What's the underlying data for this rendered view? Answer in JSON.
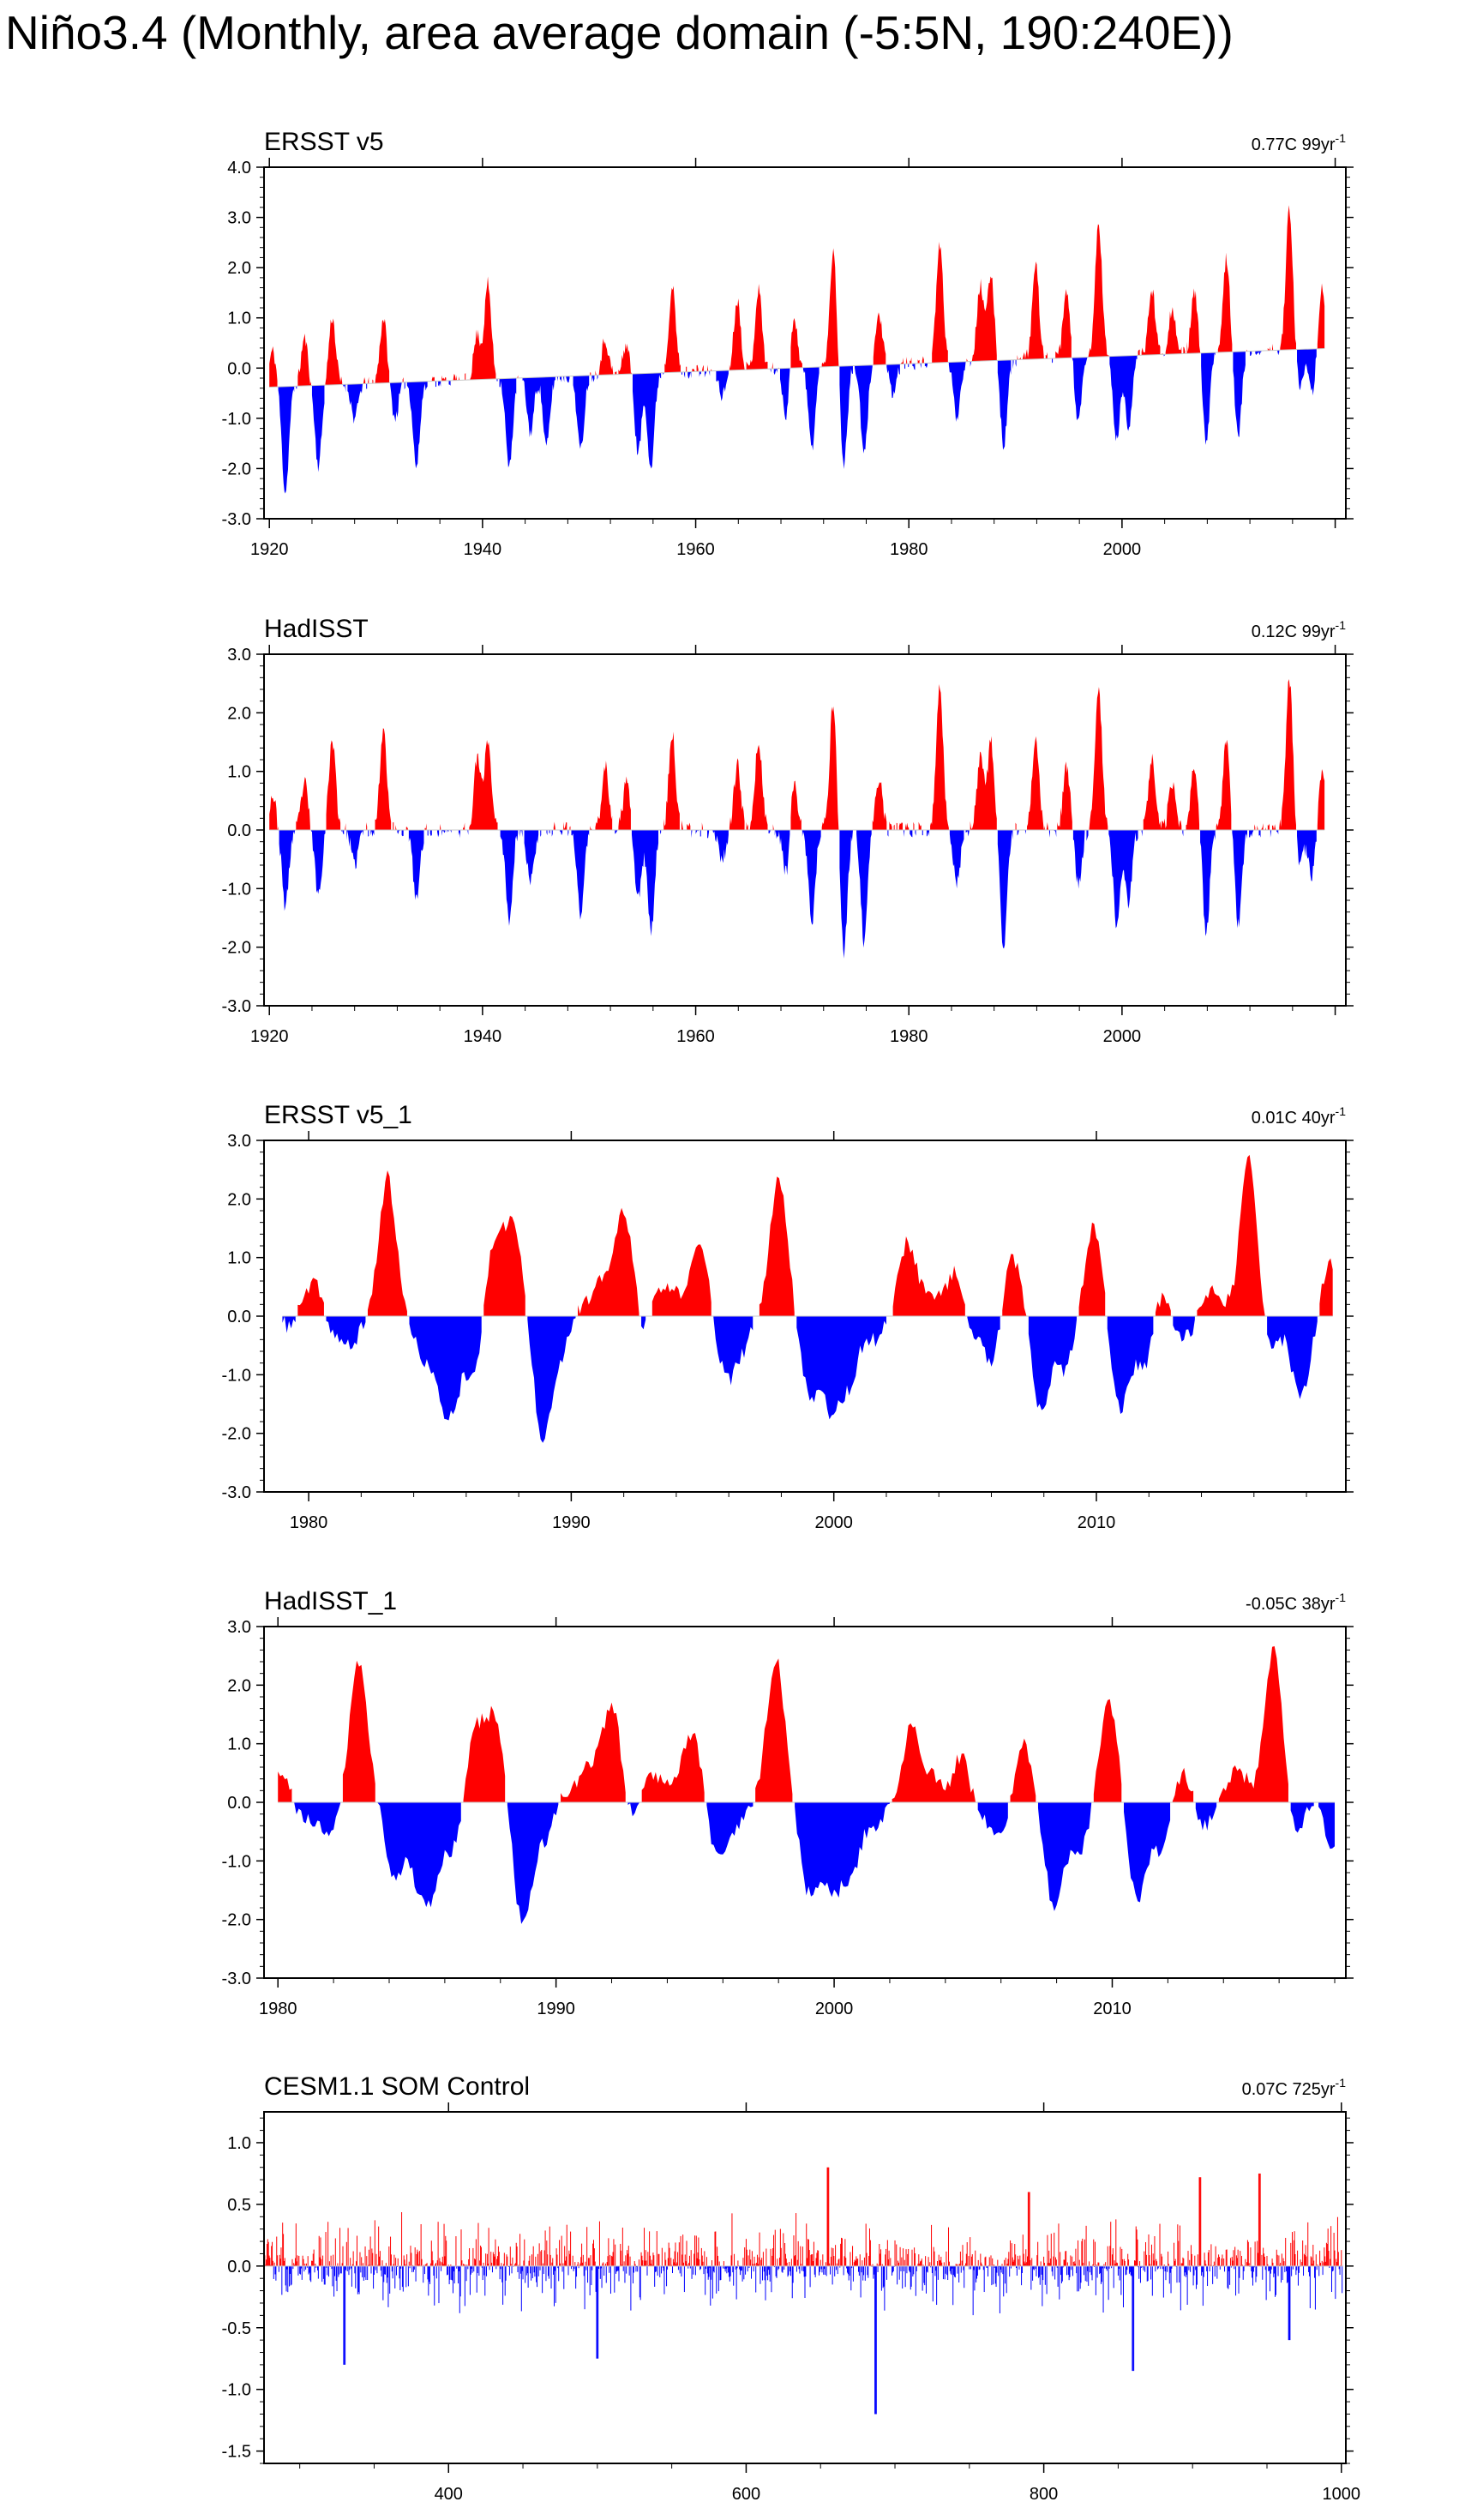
{
  "title": "Niño3.4 (Monthly, area average domain (-5:5N, 190:240E))",
  "colors": {
    "positive": "#ff0000",
    "negative": "#0000ff",
    "axis": "#000000",
    "zero_line": "#c8c8c8"
  },
  "chart_data": [
    {
      "type": "area",
      "panel_label": "ERSST v5",
      "stats": "0.77C 99yr",
      "stats_sup": "-1",
      "x_range": [
        1920,
        2019
      ],
      "xlim": [
        1919.5,
        2021
      ],
      "ylim": [
        -3.0,
        4.0
      ],
      "y_ticks": [
        "4.0",
        "3.0",
        "2.0",
        "1.0",
        "0.0",
        "-1.0",
        "-2.0",
        "-3.0"
      ],
      "x_ticks": [
        "1920",
        "1940",
        "1960",
        "1980",
        "2000"
      ],
      "baseline": "linear trend",
      "trend": [
        -0.38,
        0.39
      ],
      "seed": 11,
      "events": [
        [
          1920.3,
          0.72
        ],
        [
          1921.5,
          -2.1
        ],
        [
          1923.3,
          0.95
        ],
        [
          1924.6,
          -1.6
        ],
        [
          1925.9,
          1.35
        ],
        [
          1928.0,
          -0.7
        ],
        [
          1930.7,
          1.3
        ],
        [
          1931.8,
          -0.7
        ],
        [
          1933.8,
          -1.7
        ],
        [
          1939.5,
          0.9
        ],
        [
          1940.5,
          1.9
        ],
        [
          1942.5,
          -1.8
        ],
        [
          1944.5,
          -1.1
        ],
        [
          1946.0,
          -1.4
        ],
        [
          1949.2,
          -1.5
        ],
        [
          1951.5,
          0.7
        ],
        [
          1953.5,
          0.6
        ],
        [
          1954.6,
          -1.6
        ],
        [
          1955.8,
          -1.9
        ],
        [
          1957.8,
          1.7
        ],
        [
          1962.5,
          -0.5
        ],
        [
          1963.9,
          1.4
        ],
        [
          1965.9,
          1.6
        ],
        [
          1968.5,
          -1.0
        ],
        [
          1969.2,
          1.1
        ],
        [
          1970.9,
          -1.6
        ],
        [
          1972.9,
          2.3
        ],
        [
          1973.9,
          -1.95
        ],
        [
          1975.8,
          -1.8
        ],
        [
          1977.2,
          1.0
        ],
        [
          1978.5,
          -0.6
        ],
        [
          1982.9,
          2.35
        ],
        [
          1984.5,
          -1.1
        ],
        [
          1986.7,
          1.5
        ],
        [
          1987.7,
          1.7
        ],
        [
          1988.9,
          -1.7
        ],
        [
          1991.9,
          1.85
        ],
        [
          1994.8,
          1.3
        ],
        [
          1995.9,
          -1.3
        ],
        [
          1997.8,
          2.65
        ],
        [
          1999.5,
          -1.7
        ],
        [
          2000.6,
          -1.45
        ],
        [
          2002.8,
          1.3
        ],
        [
          2004.7,
          0.9
        ],
        [
          2006.8,
          1.2
        ],
        [
          2007.9,
          -1.8
        ],
        [
          2009.8,
          1.9
        ],
        [
          2010.9,
          -1.7
        ],
        [
          2015.7,
          2.85
        ],
        [
          2016.7,
          -0.8
        ],
        [
          2017.8,
          -0.9
        ],
        [
          2018.8,
          1.2
        ]
      ]
    },
    {
      "type": "area",
      "panel_label": "HadISST",
      "stats": "0.12C 99yr",
      "stats_sup": "-1",
      "x_range": [
        1920,
        2019
      ],
      "xlim": [
        1919.5,
        2021
      ],
      "ylim": [
        -3.0,
        3.0
      ],
      "y_ticks": [
        "3.0",
        "2.0",
        "1.0",
        "0.0",
        "-1.0",
        "-2.0",
        "-3.0"
      ],
      "x_ticks": [
        "1920",
        "1940",
        "1960",
        "1980",
        "2000"
      ],
      "baseline": "zero",
      "trend": [
        0,
        0
      ],
      "seed": 23,
      "events": [
        [
          1920.3,
          0.6
        ],
        [
          1921.5,
          -1.3
        ],
        [
          1923.3,
          0.8
        ],
        [
          1924.6,
          -1.1
        ],
        [
          1925.9,
          1.55
        ],
        [
          1928.0,
          -0.6
        ],
        [
          1930.7,
          1.75
        ],
        [
          1933.8,
          -1.2
        ],
        [
          1939.5,
          1.2
        ],
        [
          1940.5,
          1.55
        ],
        [
          1942.5,
          -1.5
        ],
        [
          1944.5,
          -0.9
        ],
        [
          1949.2,
          -1.45
        ],
        [
          1951.5,
          1.1
        ],
        [
          1953.5,
          0.8
        ],
        [
          1954.6,
          -1.2
        ],
        [
          1955.8,
          -1.75
        ],
        [
          1957.8,
          1.65
        ],
        [
          1962.5,
          -0.5
        ],
        [
          1963.9,
          1.1
        ],
        [
          1965.9,
          1.55
        ],
        [
          1968.5,
          -0.8
        ],
        [
          1969.2,
          0.9
        ],
        [
          1970.9,
          -1.6
        ],
        [
          1972.9,
          2.2
        ],
        [
          1973.9,
          -2.1
        ],
        [
          1975.8,
          -1.9
        ],
        [
          1977.2,
          0.9
        ],
        [
          1982.9,
          2.45
        ],
        [
          1984.5,
          -0.9
        ],
        [
          1986.7,
          1.2
        ],
        [
          1987.7,
          1.5
        ],
        [
          1988.9,
          -2.05
        ],
        [
          1991.9,
          1.6
        ],
        [
          1994.8,
          1.1
        ],
        [
          1995.9,
          -0.9
        ],
        [
          1997.8,
          2.45
        ],
        [
          1999.5,
          -1.6
        ],
        [
          2000.6,
          -1.3
        ],
        [
          2002.8,
          1.2
        ],
        [
          2004.7,
          0.8
        ],
        [
          2006.8,
          1.1
        ],
        [
          2007.9,
          -1.75
        ],
        [
          2009.8,
          1.6
        ],
        [
          2010.9,
          -1.65
        ],
        [
          2015.7,
          2.6
        ],
        [
          2016.7,
          -0.6
        ],
        [
          2017.8,
          -0.8
        ],
        [
          2018.8,
          0.95
        ]
      ]
    },
    {
      "type": "area",
      "panel_label": "ERSST v5_1",
      "stats": "0.01C 40yr",
      "stats_sup": "-1",
      "x_range": [
        1979,
        2019
      ],
      "xlim": [
        1978.3,
        2019.5
      ],
      "ylim": [
        -3.0,
        3.0
      ],
      "y_ticks": [
        "3.0",
        "2.0",
        "1.0",
        "0.0",
        "-1.0",
        "-2.0",
        "-3.0"
      ],
      "x_ticks": [
        "1980",
        "1990",
        "2000",
        "2010"
      ],
      "baseline": "zero",
      "trend": [
        0,
        0
      ],
      "seed": 37,
      "events": [
        [
          1979.3,
          -0.2
        ],
        [
          1979.8,
          0.2
        ],
        [
          1980.3,
          0.5
        ],
        [
          1980.9,
          -0.3
        ],
        [
          1981.6,
          -0.5
        ],
        [
          1983.0,
          2.35
        ],
        [
          1984.3,
          -0.6
        ],
        [
          1985.0,
          -1.0
        ],
        [
          1985.5,
          -1.3
        ],
        [
          1986.3,
          -0.9
        ],
        [
          1987.1,
          1.3
        ],
        [
          1987.8,
          1.5
        ],
        [
          1988.9,
          -2.0
        ],
        [
          1989.6,
          -0.6
        ],
        [
          1990.3,
          0.2
        ],
        [
          1991.2,
          0.6
        ],
        [
          1992.0,
          1.8
        ],
        [
          1992.8,
          -0.3
        ],
        [
          1993.4,
          0.5
        ],
        [
          1994.1,
          0.3
        ],
        [
          1994.9,
          1.2
        ],
        [
          1995.9,
          -1.0
        ],
        [
          1996.5,
          -0.5
        ],
        [
          1997.9,
          2.4
        ],
        [
          1999.1,
          -1.3
        ],
        [
          1999.9,
          -1.5
        ],
        [
          2000.6,
          -1.1
        ],
        [
          2001.5,
          -0.4
        ],
        [
          2002.8,
          1.25
        ],
        [
          2003.6,
          0.4
        ],
        [
          2004.6,
          0.8
        ],
        [
          2005.2,
          -0.3
        ],
        [
          2006.0,
          -0.8
        ],
        [
          2006.8,
          1.0
        ],
        [
          2007.9,
          -1.65
        ],
        [
          2008.8,
          -0.9
        ],
        [
          2009.9,
          1.55
        ],
        [
          2010.9,
          -1.6
        ],
        [
          2011.8,
          -0.9
        ],
        [
          2012.5,
          0.4
        ],
        [
          2013.3,
          -0.4
        ],
        [
          2014.5,
          0.5
        ],
        [
          2015.8,
          2.7
        ],
        [
          2016.6,
          -0.6
        ],
        [
          2017.6,
          -0.6
        ],
        [
          2017.9,
          -0.95
        ],
        [
          2018.9,
          0.9
        ]
      ]
    },
    {
      "type": "area",
      "panel_label": "HadISST_1",
      "stats": "-0.05C 38yr",
      "stats_sup": "-1",
      "x_range": [
        1980,
        2018
      ],
      "xlim": [
        1979.5,
        2018.4
      ],
      "ylim": [
        -3.0,
        3.0
      ],
      "y_ticks": [
        "3.0",
        "2.0",
        "1.0",
        "0.0",
        "-1.0",
        "-2.0",
        "-3.0"
      ],
      "x_ticks": [
        "1980",
        "1990",
        "2000",
        "2010"
      ],
      "baseline": "zero",
      "trend": [
        0,
        0
      ],
      "seed": 41,
      "events": [
        [
          1980.1,
          0.45
        ],
        [
          1981.0,
          -0.3
        ],
        [
          1981.8,
          -0.5
        ],
        [
          1982.9,
          2.4
        ],
        [
          1984.2,
          -1.2
        ],
        [
          1985.0,
          -1.0
        ],
        [
          1985.5,
          -1.4
        ],
        [
          1986.3,
          -0.8
        ],
        [
          1987.1,
          1.2
        ],
        [
          1987.8,
          1.4
        ],
        [
          1988.8,
          -2.1
        ],
        [
          1989.6,
          -0.6
        ],
        [
          1990.3,
          0.2
        ],
        [
          1991.2,
          0.6
        ],
        [
          1992.0,
          1.65
        ],
        [
          1992.8,
          -0.3
        ],
        [
          1993.4,
          0.5
        ],
        [
          1994.1,
          0.3
        ],
        [
          1994.9,
          1.2
        ],
        [
          1995.8,
          -0.9
        ],
        [
          1996.5,
          -0.4
        ],
        [
          1997.9,
          2.45
        ],
        [
          1999.1,
          -1.5
        ],
        [
          1999.9,
          -1.4
        ],
        [
          2000.6,
          -1.25
        ],
        [
          2001.5,
          -0.4
        ],
        [
          2002.8,
          1.3
        ],
        [
          2003.6,
          0.4
        ],
        [
          2004.6,
          0.8
        ],
        [
          2005.2,
          -0.3
        ],
        [
          2006.0,
          -0.6
        ],
        [
          2006.8,
          1.0
        ],
        [
          2007.9,
          -1.75
        ],
        [
          2008.8,
          -0.9
        ],
        [
          2009.9,
          1.7
        ],
        [
          2010.9,
          -1.65
        ],
        [
          2011.8,
          -0.9
        ],
        [
          2012.5,
          0.6
        ],
        [
          2013.3,
          -0.4
        ],
        [
          2014.5,
          0.6
        ],
        [
          2015.8,
          2.6
        ],
        [
          2016.6,
          -0.6
        ],
        [
          2017.4,
          0.25
        ],
        [
          2017.9,
          -0.9
        ]
      ]
    },
    {
      "type": "area",
      "panel_label": "CESM1.1 SOM Control",
      "stats": "0.07C 725yr",
      "stats_sup": "-1",
      "x_range": [
        276,
        1001
      ],
      "xlim": [
        276,
        1003
      ],
      "ylim": [
        -1.6,
        1.25
      ],
      "y_ticks": [
        "1.0",
        "0.5",
        "0.0",
        "-0.5",
        "-1.0",
        "-1.5"
      ],
      "y_tick_values": [
        1.0,
        0.5,
        0.0,
        -0.5,
        -1.0,
        -1.5
      ],
      "x_ticks": [
        "400",
        "600",
        "800",
        "1000"
      ],
      "baseline": "zero",
      "trend": [
        0,
        0
      ],
      "seed": 53,
      "noise_amp": 0.22,
      "events": [
        [
          330,
          -0.8
        ],
        [
          500,
          -0.75
        ],
        [
          655,
          0.8
        ],
        [
          687,
          -1.2
        ],
        [
          790,
          0.6
        ],
        [
          860,
          -0.85
        ],
        [
          905,
          0.72
        ],
        [
          945,
          0.75
        ],
        [
          965,
          -0.6
        ]
      ]
    }
  ]
}
